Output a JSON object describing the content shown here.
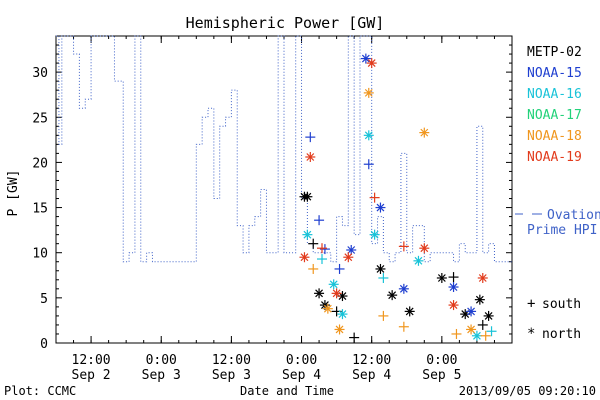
{
  "chart_data": {
    "type": "scatter",
    "title": "Hemispheric Power [GW]",
    "ylabel": "P [GW]",
    "xlabel": "Date and Time",
    "ylim": [
      0,
      34
    ],
    "xlim": [
      "2013-09-02 06:00",
      "2013-09-05 12:00"
    ],
    "yticks": [
      0,
      5,
      10,
      15,
      20,
      25,
      30
    ],
    "xticks": [
      {
        "time": "2013-09-02 12:00",
        "line1": "12:00",
        "line2": "Sep 2"
      },
      {
        "time": "2013-09-03 00:00",
        "line1": "0:00",
        "line2": "Sep 3"
      },
      {
        "time": "2013-09-03 12:00",
        "line1": "12:00",
        "line2": "Sep 3"
      },
      {
        "time": "2013-09-04 00:00",
        "line1": "0:00",
        "line2": "Sep 4"
      },
      {
        "time": "2013-09-04 12:00",
        "line1": "12:00",
        "line2": "Sep 4"
      },
      {
        "time": "2013-09-05 00:00",
        "line1": "0:00",
        "line2": "Sep 5"
      }
    ],
    "grid": false,
    "legend_position": "right",
    "footer_left": "Plot: CCMC",
    "footer_right": "2013/09/05 09:20:10",
    "satellites": [
      {
        "name": "METP-02",
        "color": "#000000"
      },
      {
        "name": "NOAA-15",
        "color": "#1f3fd0"
      },
      {
        "name": "NOAA-16",
        "color": "#19c3d8"
      },
      {
        "name": "NOAA-17",
        "color": "#22d27a"
      },
      {
        "name": "NOAA-18",
        "color": "#f0961e"
      },
      {
        "name": "NOAA-19",
        "color": "#e23b1c"
      }
    ],
    "ovation": {
      "label_line1": "Ovation",
      "label_line2": "Prime HPI",
      "color": "#3f62c8",
      "steps": [
        [
          "2013-09-02 06:00",
          34
        ],
        [
          "2013-09-02 06:30",
          22
        ],
        [
          "2013-09-02 07:00",
          34
        ],
        [
          "2013-09-02 09:00",
          32
        ],
        [
          "2013-09-02 10:00",
          26
        ],
        [
          "2013-09-02 11:00",
          27
        ],
        [
          "2013-09-02 12:00",
          34
        ],
        [
          "2013-09-02 16:00",
          29
        ],
        [
          "2013-09-02 17:30",
          9
        ],
        [
          "2013-09-02 18:30",
          10
        ],
        [
          "2013-09-02 19:30",
          34
        ],
        [
          "2013-09-02 20:30",
          9
        ],
        [
          "2013-09-02 21:30",
          10
        ],
        [
          "2013-09-02 22:30",
          9
        ],
        [
          "2013-09-03 06:00",
          22
        ],
        [
          "2013-09-03 07:00",
          25
        ],
        [
          "2013-09-03 08:00",
          26
        ],
        [
          "2013-09-03 09:00",
          16
        ],
        [
          "2013-09-03 10:00",
          24
        ],
        [
          "2013-09-03 11:00",
          25
        ],
        [
          "2013-09-03 12:00",
          28
        ],
        [
          "2013-09-03 13:00",
          13
        ],
        [
          "2013-09-03 14:00",
          10
        ],
        [
          "2013-09-03 15:00",
          13
        ],
        [
          "2013-09-03 16:00",
          14
        ],
        [
          "2013-09-03 17:00",
          17
        ],
        [
          "2013-09-03 18:00",
          10
        ],
        [
          "2013-09-03 20:00",
          34
        ],
        [
          "2013-09-03 21:00",
          10
        ],
        [
          "2013-09-03 23:00",
          34
        ],
        [
          "2013-09-04 00:00",
          16
        ],
        [
          "2013-09-04 01:00",
          11
        ],
        [
          "2013-09-04 02:00",
          10
        ],
        [
          "2013-09-04 05:00",
          9
        ],
        [
          "2013-09-04 06:00",
          14
        ],
        [
          "2013-09-04 07:00",
          13
        ],
        [
          "2013-09-04 08:00",
          34
        ],
        [
          "2013-09-04 09:00",
          12
        ],
        [
          "2013-09-04 10:00",
          34
        ],
        [
          "2013-09-04 12:00",
          11
        ],
        [
          "2013-09-04 13:00",
          14
        ],
        [
          "2013-09-04 14:00",
          10
        ],
        [
          "2013-09-04 15:00",
          9
        ],
        [
          "2013-09-04 16:00",
          10
        ],
        [
          "2013-09-04 17:00",
          21
        ],
        [
          "2013-09-04 18:00",
          10
        ],
        [
          "2013-09-04 19:00",
          13
        ],
        [
          "2013-09-04 21:00",
          9
        ],
        [
          "2013-09-04 22:00",
          10
        ],
        [
          "2013-09-05 02:00",
          9
        ],
        [
          "2013-09-05 03:00",
          11
        ],
        [
          "2013-09-05 04:00",
          10
        ],
        [
          "2013-09-05 06:00",
          24
        ],
        [
          "2013-09-05 07:00",
          10
        ],
        [
          "2013-09-05 08:00",
          11
        ],
        [
          "2013-09-05 09:00",
          9
        ],
        [
          "2013-09-05 12:00",
          9
        ]
      ]
    },
    "markers_legend": [
      {
        "symbol": "+",
        "label": "south"
      },
      {
        "symbol": "*",
        "label": "north"
      }
    ],
    "points": [
      {
        "sat": "METP-02",
        "m": "*",
        "t": "2013-09-04 00:30",
        "y": 16.2
      },
      {
        "sat": "METP-02",
        "m": "*",
        "t": "2013-09-04 01:00",
        "y": 16.2
      },
      {
        "sat": "METP-02",
        "m": "+",
        "t": "2013-09-04 02:00",
        "y": 11
      },
      {
        "sat": "METP-02",
        "m": "*",
        "t": "2013-09-04 03:00",
        "y": 5.5
      },
      {
        "sat": "METP-02",
        "m": "*",
        "t": "2013-09-04 04:00",
        "y": 4.2
      },
      {
        "sat": "METP-02",
        "m": "+",
        "t": "2013-09-04 06:00",
        "y": 3.5
      },
      {
        "sat": "METP-02",
        "m": "*",
        "t": "2013-09-04 07:00",
        "y": 5.2
      },
      {
        "sat": "METP-02",
        "m": "+",
        "t": "2013-09-04 09:00",
        "y": 0.6
      },
      {
        "sat": "METP-02",
        "m": "*",
        "t": "2013-09-04 13:30",
        "y": 8.2
      },
      {
        "sat": "METP-02",
        "m": "*",
        "t": "2013-09-04 15:30",
        "y": 5.3
      },
      {
        "sat": "METP-02",
        "m": "*",
        "t": "2013-09-04 18:30",
        "y": 3.5
      },
      {
        "sat": "METP-02",
        "m": "*",
        "t": "2013-09-05 00:00",
        "y": 7.2
      },
      {
        "sat": "METP-02",
        "m": "+",
        "t": "2013-09-05 02:00",
        "y": 7.3
      },
      {
        "sat": "METP-02",
        "m": "*",
        "t": "2013-09-05 04:00",
        "y": 3.2
      },
      {
        "sat": "METP-02",
        "m": "*",
        "t": "2013-09-05 06:30",
        "y": 4.8
      },
      {
        "sat": "METP-02",
        "m": "+",
        "t": "2013-09-05 07:00",
        "y": 2.0
      },
      {
        "sat": "METP-02",
        "m": "*",
        "t": "2013-09-05 08:00",
        "y": 3.0
      },
      {
        "sat": "NOAA-15",
        "m": "+",
        "t": "2013-09-04 01:30",
        "y": 22.8
      },
      {
        "sat": "NOAA-15",
        "m": "+",
        "t": "2013-09-04 03:00",
        "y": 13.6
      },
      {
        "sat": "NOAA-15",
        "m": "+",
        "t": "2013-09-04 04:00",
        "y": 10.4
      },
      {
        "sat": "NOAA-15",
        "m": "+",
        "t": "2013-09-04 06:30",
        "y": 8.2
      },
      {
        "sat": "NOAA-15",
        "m": "*",
        "t": "2013-09-04 08:30",
        "y": 10.3
      },
      {
        "sat": "NOAA-15",
        "m": "+",
        "t": "2013-09-04 11:30",
        "y": 19.8
      },
      {
        "sat": "NOAA-15",
        "m": "*",
        "t": "2013-09-04 11:00",
        "y": 31.5
      },
      {
        "sat": "NOAA-15",
        "m": "*",
        "t": "2013-09-04 13:30",
        "y": 15.0
      },
      {
        "sat": "NOAA-15",
        "m": "*",
        "t": "2013-09-04 17:30",
        "y": 6.0
      },
      {
        "sat": "NOAA-15",
        "m": "*",
        "t": "2013-09-05 02:00",
        "y": 6.2
      },
      {
        "sat": "NOAA-15",
        "m": "*",
        "t": "2013-09-05 05:00",
        "y": 3.5
      },
      {
        "sat": "NOAA-16",
        "m": "*",
        "t": "2013-09-04 01:00",
        "y": 12.0
      },
      {
        "sat": "NOAA-16",
        "m": "+",
        "t": "2013-09-04 03:30",
        "y": 9.3
      },
      {
        "sat": "NOAA-16",
        "m": "*",
        "t": "2013-09-04 05:30",
        "y": 6.5
      },
      {
        "sat": "NOAA-16",
        "m": "*",
        "t": "2013-09-04 07:00",
        "y": 3.2
      },
      {
        "sat": "NOAA-16",
        "m": "*",
        "t": "2013-09-04 11:30",
        "y": 23.0
      },
      {
        "sat": "NOAA-16",
        "m": "*",
        "t": "2013-09-04 12:30",
        "y": 12.0
      },
      {
        "sat": "NOAA-16",
        "m": "+",
        "t": "2013-09-04 14:00",
        "y": 7.2
      },
      {
        "sat": "NOAA-16",
        "m": "*",
        "t": "2013-09-04 20:00",
        "y": 9.1
      },
      {
        "sat": "NOAA-16",
        "m": "*",
        "t": "2013-09-05 06:00",
        "y": 0.8
      },
      {
        "sat": "NOAA-16",
        "m": "+",
        "t": "2013-09-05 08:30",
        "y": 1.3
      },
      {
        "sat": "NOAA-18",
        "m": "+",
        "t": "2013-09-04 02:00",
        "y": 8.2
      },
      {
        "sat": "NOAA-18",
        "m": "*",
        "t": "2013-09-04 04:30",
        "y": 3.8
      },
      {
        "sat": "NOAA-18",
        "m": "*",
        "t": "2013-09-04 06:30",
        "y": 1.5
      },
      {
        "sat": "NOAA-18",
        "m": "*",
        "t": "2013-09-04 11:30",
        "y": 27.7
      },
      {
        "sat": "NOAA-18",
        "m": "+",
        "t": "2013-09-04 14:00",
        "y": 3.0
      },
      {
        "sat": "NOAA-18",
        "m": "+",
        "t": "2013-09-04 17:30",
        "y": 1.8
      },
      {
        "sat": "NOAA-18",
        "m": "*",
        "t": "2013-09-04 21:00",
        "y": 23.3
      },
      {
        "sat": "NOAA-18",
        "m": "+",
        "t": "2013-09-05 02:30",
        "y": 1.0
      },
      {
        "sat": "NOAA-18",
        "m": "*",
        "t": "2013-09-05 05:00",
        "y": 1.5
      },
      {
        "sat": "NOAA-18",
        "m": "+",
        "t": "2013-09-05 07:30",
        "y": 0.8
      },
      {
        "sat": "NOAA-19",
        "m": "*",
        "t": "2013-09-04 01:30",
        "y": 20.6
      },
      {
        "sat": "NOAA-19",
        "m": "*",
        "t": "2013-09-04 00:30",
        "y": 9.5
      },
      {
        "sat": "NOAA-19",
        "m": "+",
        "t": "2013-09-04 03:30",
        "y": 10.5
      },
      {
        "sat": "NOAA-19",
        "m": "*",
        "t": "2013-09-04 06:00",
        "y": 5.5
      },
      {
        "sat": "NOAA-19",
        "m": "*",
        "t": "2013-09-04 08:00",
        "y": 9.5
      },
      {
        "sat": "NOAA-19",
        "m": "*",
        "t": "2013-09-04 12:00",
        "y": 31.0
      },
      {
        "sat": "NOAA-19",
        "m": "+",
        "t": "2013-09-04 12:30",
        "y": 16.1
      },
      {
        "sat": "NOAA-19",
        "m": "+",
        "t": "2013-09-04 17:30",
        "y": 10.7
      },
      {
        "sat": "NOAA-19",
        "m": "*",
        "t": "2013-09-04 21:00",
        "y": 10.5
      },
      {
        "sat": "NOAA-19",
        "m": "*",
        "t": "2013-09-05 02:00",
        "y": 4.2
      },
      {
        "sat": "NOAA-19",
        "m": "*",
        "t": "2013-09-05 07:00",
        "y": 7.2
      }
    ]
  }
}
